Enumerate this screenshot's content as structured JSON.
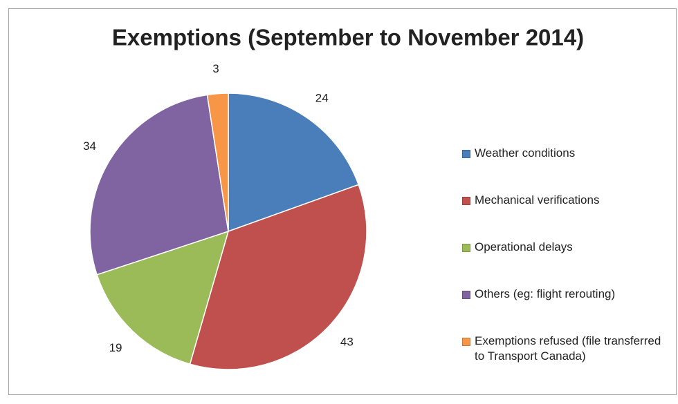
{
  "chart_data": {
    "type": "pie",
    "title": "Exemptions (September to November 2014)",
    "categories": [
      "Weather conditions",
      "Mechanical verifications",
      "Operational delays",
      "Others (eg: flight rerouting)",
      "Exemptions refused (file transferred to Transport Canada)"
    ],
    "values": [
      24,
      43,
      19,
      34,
      3
    ],
    "colors": [
      "#4a7ebb",
      "#c0504d",
      "#9bbb59",
      "#8064a2",
      "#f79646"
    ],
    "legend": "right"
  }
}
